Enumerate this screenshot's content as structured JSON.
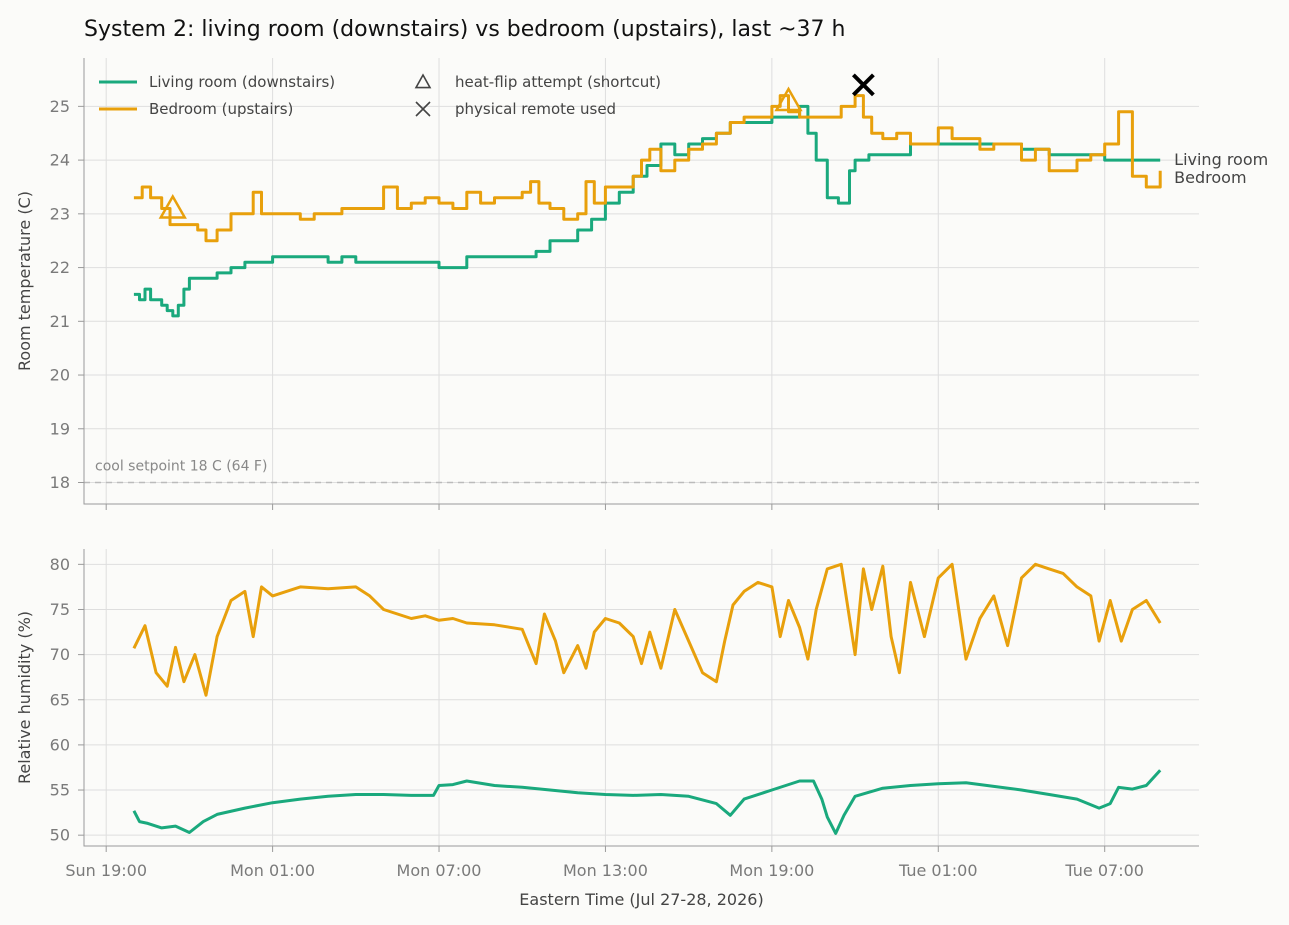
{
  "chart_data": {
    "type": "line",
    "title": "System 2: living room (downstairs) vs bedroom (upstairs), last ~37 h",
    "xlabel": "Eastern Time (Jul 27-28, 2026)",
    "x_unit": "hours since Sun 19:00 (Eastern)",
    "x_ticks": [
      {
        "x": 0,
        "label": "Sun 19:00"
      },
      {
        "x": 6,
        "label": "Mon 01:00"
      },
      {
        "x": 12,
        "label": "Mon 07:00"
      },
      {
        "x": 18,
        "label": "Mon 13:00"
      },
      {
        "x": 24,
        "label": "Mon 19:00"
      },
      {
        "x": 30,
        "label": "Tue 01:00"
      },
      {
        "x": 36,
        "label": "Tue 07:00"
      }
    ],
    "xlim": [
      -0.8,
      39.4
    ],
    "colors": {
      "living": "#1aa97d",
      "bedroom": "#e8a00c"
    },
    "panels": [
      {
        "name": "temperature",
        "ylabel": "Room temperature (C)",
        "ylim": [
          17.6,
          25.9
        ],
        "yticks": [
          18,
          19,
          20,
          21,
          22,
          23,
          24,
          25
        ],
        "setpoint": {
          "y": 18,
          "label": "cool setpoint 18 C (64 F)"
        },
        "end_labels": [
          "Living room",
          "Bedroom"
        ],
        "series": [
          {
            "name": "Living room (downstairs)",
            "color": "#1aa97d",
            "x": [
              1.0,
              1.2,
              1.4,
              1.6,
              2.0,
              2.2,
              2.4,
              2.6,
              2.8,
              3.0,
              3.5,
              4.0,
              4.5,
              5.0,
              6.0,
              7.0,
              8.0,
              8.5,
              9.0,
              10.0,
              11.0,
              12.0,
              13.0,
              14.0,
              15.0,
              15.5,
              16.0,
              16.5,
              17.0,
              17.5,
              18.0,
              18.5,
              19.0,
              19.5,
              20.0,
              20.5,
              21.0,
              21.5,
              22.0,
              22.5,
              23.0,
              24.0,
              25.0,
              25.3,
              25.6,
              26.0,
              26.4,
              26.8,
              27.0,
              27.5,
              28.0,
              29.0,
              30.0,
              31.0,
              32.0,
              33.0,
              34.0,
              35.0,
              36.0,
              37.0,
              38.0
            ],
            "y": [
              21.5,
              21.4,
              21.6,
              21.4,
              21.3,
              21.2,
              21.1,
              21.3,
              21.6,
              21.8,
              21.8,
              21.9,
              22.0,
              22.1,
              22.2,
              22.2,
              22.1,
              22.2,
              22.1,
              22.1,
              22.1,
              22.0,
              22.2,
              22.2,
              22.2,
              22.3,
              22.5,
              22.5,
              22.7,
              22.9,
              23.2,
              23.4,
              23.7,
              23.9,
              24.3,
              24.1,
              24.3,
              24.4,
              24.5,
              24.7,
              24.7,
              24.8,
              25.0,
              24.5,
              24.0,
              23.3,
              23.2,
              23.8,
              24.0,
              24.1,
              24.1,
              24.3,
              24.3,
              24.3,
              24.3,
              24.2,
              24.1,
              24.1,
              24.0,
              24.0,
              24.0
            ]
          },
          {
            "name": "Bedroom (upstairs)",
            "color": "#e8a00c",
            "x": [
              1.0,
              1.3,
              1.6,
              2.0,
              2.3,
              2.6,
              3.0,
              3.3,
              3.6,
              4.0,
              4.5,
              5.0,
              5.3,
              5.6,
              6.0,
              6.5,
              7.0,
              7.5,
              8.0,
              8.5,
              9.0,
              9.5,
              10.0,
              10.5,
              11.0,
              11.5,
              12.0,
              12.5,
              13.0,
              13.5,
              14.0,
              14.5,
              15.0,
              15.3,
              15.6,
              16.0,
              16.5,
              17.0,
              17.3,
              17.6,
              18.0,
              18.5,
              19.0,
              19.3,
              19.6,
              20.0,
              20.5,
              21.0,
              21.5,
              22.0,
              22.5,
              23.0,
              23.5,
              24.0,
              24.3,
              24.6,
              25.0,
              25.5,
              26.0,
              26.5,
              27.0,
              27.3,
              27.6,
              28.0,
              28.5,
              29.0,
              29.5,
              30.0,
              30.5,
              31.0,
              31.5,
              32.0,
              32.5,
              33.0,
              33.5,
              34.0,
              34.5,
              35.0,
              35.5,
              36.0,
              36.5,
              37.0,
              37.5,
              38.0
            ],
            "y": [
              23.3,
              23.5,
              23.3,
              23.1,
              22.8,
              22.8,
              22.8,
              22.7,
              22.5,
              22.7,
              23.0,
              23.0,
              23.4,
              23.0,
              23.0,
              23.0,
              22.9,
              23.0,
              23.0,
              23.1,
              23.1,
              23.1,
              23.5,
              23.1,
              23.2,
              23.3,
              23.2,
              23.1,
              23.4,
              23.2,
              23.3,
              23.3,
              23.4,
              23.6,
              23.2,
              23.1,
              22.9,
              23.0,
              23.6,
              23.2,
              23.5,
              23.5,
              23.7,
              24.0,
              24.2,
              23.8,
              24.0,
              24.2,
              24.3,
              24.5,
              24.7,
              24.8,
              24.8,
              25.0,
              25.2,
              24.9,
              24.8,
              24.8,
              24.8,
              25.0,
              25.2,
              24.8,
              24.5,
              24.4,
              24.5,
              24.3,
              24.3,
              24.6,
              24.4,
              24.4,
              24.2,
              24.3,
              24.3,
              24.0,
              24.2,
              23.8,
              23.8,
              24.0,
              24.1,
              24.3,
              24.9,
              23.7,
              23.5,
              23.8
            ]
          }
        ],
        "markers": [
          {
            "type": "heat-flip attempt (shortcut)",
            "symbol": "triangle",
            "x": 2.4,
            "y": 23.1,
            "color": "#e8a00c"
          },
          {
            "type": "heat-flip attempt (shortcut)",
            "symbol": "triangle",
            "x": 24.6,
            "y": 25.1,
            "color": "#e8a00c"
          },
          {
            "type": "physical remote used",
            "symbol": "x",
            "x": 27.3,
            "y": 25.4,
            "color": "#000000"
          }
        ],
        "legend": {
          "placement": "top-left",
          "entries": [
            {
              "label": "Living room (downstairs)",
              "symbol": "line",
              "color": "#1aa97d"
            },
            {
              "label": "Bedroom (upstairs)",
              "symbol": "line",
              "color": "#e8a00c"
            },
            {
              "label": "heat-flip attempt (shortcut)",
              "symbol": "triangle",
              "color": "#444444"
            },
            {
              "label": "physical remote used",
              "symbol": "x",
              "color": "#444444"
            }
          ]
        }
      },
      {
        "name": "humidity",
        "ylabel": "Relative humidity (%)",
        "ylim": [
          48.8,
          81.7
        ],
        "yticks": [
          50,
          55,
          60,
          65,
          70,
          75,
          80
        ],
        "series": [
          {
            "name": "Living room (downstairs)",
            "color": "#1aa97d",
            "x": [
              1.0,
              1.2,
              1.5,
              2.0,
              2.5,
              3.0,
              3.5,
              4.0,
              5.0,
              6.0,
              7.0,
              8.0,
              9.0,
              10.0,
              11.0,
              11.8,
              12.0,
              12.5,
              13.0,
              14.0,
              15.0,
              16.0,
              17.0,
              18.0,
              19.0,
              20.0,
              21.0,
              22.0,
              22.5,
              23.0,
              24.0,
              25.0,
              25.5,
              25.8,
              26.0,
              26.3,
              26.6,
              27.0,
              28.0,
              29.0,
              30.0,
              31.0,
              32.0,
              33.0,
              34.0,
              35.0,
              35.8,
              36.2,
              36.5,
              37.0,
              37.5,
              38.0
            ],
            "y": [
              52.7,
              51.5,
              51.3,
              50.8,
              51.0,
              50.3,
              51.5,
              52.3,
              53.0,
              53.6,
              54.0,
              54.3,
              54.5,
              54.5,
              54.4,
              54.4,
              55.5,
              55.6,
              56.0,
              55.5,
              55.3,
              55.0,
              54.7,
              54.5,
              54.4,
              54.5,
              54.3,
              53.5,
              52.2,
              54.0,
              55.0,
              56.0,
              56.0,
              54.0,
              52.0,
              50.2,
              52.2,
              54.3,
              55.2,
              55.5,
              55.7,
              55.8,
              55.4,
              55.0,
              54.5,
              54.0,
              53.0,
              53.5,
              55.3,
              55.1,
              55.5,
              57.2
            ]
          },
          {
            "name": "Bedroom (upstairs)",
            "color": "#e8a00c",
            "x": [
              1.0,
              1.4,
              1.8,
              2.2,
              2.5,
              2.8,
              3.2,
              3.6,
              4.0,
              4.5,
              5.0,
              5.3,
              5.6,
              6.0,
              7.0,
              8.0,
              9.0,
              9.5,
              10.0,
              11.0,
              11.5,
              12.0,
              12.5,
              13.0,
              14.0,
              15.0,
              15.5,
              15.8,
              16.2,
              16.5,
              17.0,
              17.3,
              17.6,
              18.0,
              18.5,
              19.0,
              19.3,
              19.6,
              20.0,
              20.5,
              21.0,
              21.5,
              22.0,
              22.3,
              22.6,
              23.0,
              23.5,
              24.0,
              24.3,
              24.6,
              25.0,
              25.3,
              25.6,
              26.0,
              26.5,
              27.0,
              27.3,
              27.6,
              28.0,
              28.3,
              28.6,
              29.0,
              29.5,
              30.0,
              30.5,
              31.0,
              31.5,
              32.0,
              32.5,
              33.0,
              33.5,
              34.0,
              34.5,
              35.0,
              35.5,
              35.8,
              36.2,
              36.6,
              37.0,
              37.5,
              38.0
            ],
            "y": [
              70.7,
              73.2,
              68.0,
              66.5,
              70.8,
              67.0,
              70.0,
              65.5,
              72.0,
              76.0,
              77.0,
              72.0,
              77.5,
              76.5,
              77.5,
              77.3,
              77.5,
              76.5,
              75.0,
              74.0,
              74.3,
              73.8,
              74.0,
              73.5,
              73.3,
              72.8,
              69.0,
              74.5,
              71.5,
              68.0,
              71.0,
              68.5,
              72.5,
              74.0,
              73.5,
              72.0,
              69.0,
              72.5,
              68.5,
              75.0,
              71.5,
              68.0,
              67.0,
              71.5,
              75.5,
              77.0,
              78.0,
              77.5,
              72.0,
              76.0,
              73.0,
              69.5,
              75.0,
              79.5,
              80.0,
              70.0,
              79.5,
              75.0,
              79.8,
              72.0,
              68.0,
              78.0,
              72.0,
              78.5,
              80.0,
              69.5,
              74.0,
              76.5,
              71.0,
              78.5,
              80.0,
              79.5,
              79.0,
              77.5,
              76.5,
              71.5,
              76.0,
              71.5,
              75.0,
              76.0,
              73.5
            ]
          }
        ]
      }
    ]
  }
}
